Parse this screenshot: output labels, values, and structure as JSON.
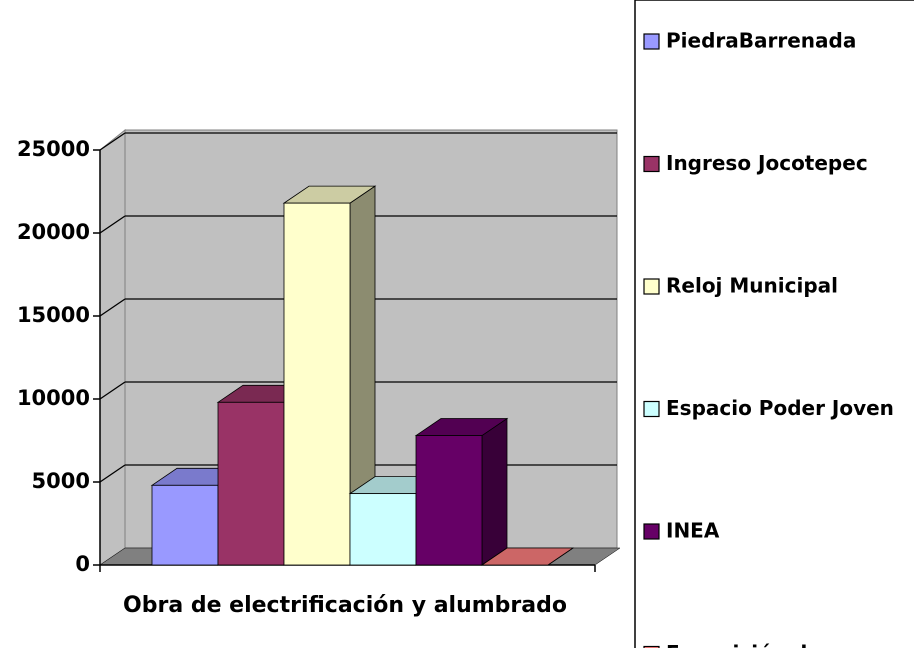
{
  "chart_data": {
    "type": "bar",
    "categories": [
      "Obra de electrificación y alumbrado"
    ],
    "series": [
      {
        "name": "PiedraBarrenada",
        "color": "#9999ff",
        "values": [
          4800
        ]
      },
      {
        "name": "Ingreso Jocotepec",
        "color": "#993366",
        "values": [
          9800
        ]
      },
      {
        "name": "Reloj Municipal",
        "color": "#ffffcc",
        "values": [
          21800
        ]
      },
      {
        "name": "Espacio Poder Joven",
        "color": "#ccffff",
        "values": [
          4300
        ]
      },
      {
        "name": "INEA",
        "color": "#660066",
        "values": [
          7800
        ]
      },
      {
        "name": "Exposición de",
        "color": "#ff8080",
        "values": [
          0
        ]
      }
    ],
    "ylim": [
      0,
      25000
    ],
    "yticks": [
      0,
      5000,
      10000,
      15000,
      20000,
      25000
    ],
    "grid": true,
    "legend": "right"
  }
}
